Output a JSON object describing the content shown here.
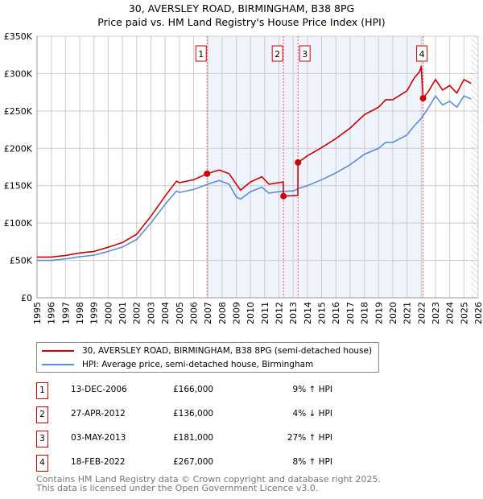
{
  "title_line1": "30, AVERSLEY ROAD, BIRMINGHAM, B38 8PG",
  "title_line2": "Price paid vs. HM Land Registry's House Price Index (HPI)",
  "colors": {
    "property": "#cc0000",
    "hpi": "#5b8fd4",
    "shade": "#eef3fc",
    "grid": "#cccccc"
  },
  "chart_data": {
    "type": "line",
    "title": "Price paid vs. HM Land Registry's House Price Index (HPI)",
    "xlim": [
      1995,
      2026
    ],
    "ylim": [
      0,
      350000
    ],
    "x_ticks": [
      "1995",
      "1996",
      "1997",
      "1998",
      "1999",
      "2000",
      "2001",
      "2002",
      "2003",
      "2004",
      "2005",
      "2006",
      "2007",
      "2008",
      "2009",
      "2010",
      "2011",
      "2012",
      "2013",
      "2014",
      "2015",
      "2016",
      "2017",
      "2018",
      "2019",
      "2020",
      "2021",
      "2022",
      "2023",
      "2024",
      "2025",
      "2026"
    ],
    "y_ticks": [
      {
        "v": 0,
        "label": "£0"
      },
      {
        "v": 50000,
        "label": "£50K"
      },
      {
        "v": 100000,
        "label": "£100K"
      },
      {
        "v": 150000,
        "label": "£150K"
      },
      {
        "v": 200000,
        "label": "£200K"
      },
      {
        "v": 250000,
        "label": "£250K"
      },
      {
        "v": 300000,
        "label": "£300K"
      },
      {
        "v": 350000,
        "label": "£350K"
      }
    ],
    "shaded_range": [
      2006.95,
      2022.13
    ],
    "hatched_from": 2025.5,
    "series": [
      {
        "name": "30, AVERSLEY ROAD, BIRMINGHAM, B38 8PG (semi-detached house)",
        "color": "#cc0000",
        "x": [
          1995,
          1996,
          1997,
          1998,
          1999,
          2000,
          2001,
          2002,
          2003,
          2004,
          2004.8,
          2005,
          2006,
          2006.95,
          2007.8,
          2008.5,
          2009.3,
          2010,
          2010.8,
          2011.3,
          2012.3,
          2012.32,
          2013.33,
          2013.34,
          2014,
          2015,
          2016,
          2017,
          2018,
          2019,
          2019.5,
          2020,
          2021,
          2021.5,
          2021.9,
          2022.0,
          2022.13,
          2022.5,
          2023,
          2023.5,
          2024,
          2024.5,
          2025,
          2025.5
        ],
        "y": [
          54500,
          54500,
          56700,
          60000,
          62000,
          67600,
          74000,
          85000,
          109000,
          136000,
          156000,
          154000,
          158000,
          166000,
          171000,
          166000,
          144000,
          155000,
          162000,
          152000,
          155000,
          136000,
          137000,
          181000,
          190000,
          201000,
          213000,
          227000,
          245000,
          255000,
          265000,
          265000,
          277000,
          294000,
          303000,
          310000,
          267000,
          276000,
          292000,
          278000,
          284000,
          274000,
          292000,
          287000
        ]
      },
      {
        "name": "HPI: Average price, semi-detached house, Birmingham",
        "color": "#5b8fd4",
        "x": [
          1995,
          1996,
          1997,
          1998,
          1999,
          2000,
          2001,
          2002,
          2003,
          2004,
          2004.8,
          2005,
          2006,
          2007,
          2007.8,
          2008.5,
          2009,
          2009.3,
          2010,
          2010.8,
          2011.3,
          2012,
          2013,
          2013.5,
          2014,
          2015,
          2016,
          2017,
          2018,
          2019,
          2019.5,
          2020,
          2021,
          2021.5,
          2022,
          2022.5,
          2023,
          2023.5,
          2024,
          2024.5,
          2025,
          2025.5
        ],
        "y": [
          50000,
          50000,
          52000,
          55000,
          57000,
          62000,
          68000,
          78000,
          100000,
          125000,
          143000,
          141000,
          145000,
          152000,
          157000,
          152000,
          135000,
          132000,
          142000,
          148000,
          140000,
          142000,
          143000,
          147000,
          150000,
          158000,
          167000,
          178000,
          192000,
          200000,
          208000,
          208000,
          218000,
          230000,
          240000,
          254000,
          270000,
          258000,
          263000,
          255000,
          270000,
          266000
        ]
      }
    ],
    "sales": [
      {
        "n": "1",
        "x": 2006.95,
        "y": 166000
      },
      {
        "n": "2",
        "x": 2012.32,
        "y": 136000
      },
      {
        "n": "3",
        "x": 2013.34,
        "y": 181000
      },
      {
        "n": "4",
        "x": 2022.13,
        "y": 267000
      }
    ]
  },
  "legend": {
    "property": "30, AVERSLEY ROAD, BIRMINGHAM, B38 8PG (semi-detached house)",
    "hpi": "HPI: Average price, semi-detached house, Birmingham"
  },
  "transactions": [
    {
      "n": "1",
      "date": "13-DEC-2006",
      "price": "£166,000",
      "hpi": "9% ↑ HPI"
    },
    {
      "n": "2",
      "date": "27-APR-2012",
      "price": "£136,000",
      "hpi": "4% ↓ HPI"
    },
    {
      "n": "3",
      "date": "03-MAY-2013",
      "price": "£181,000",
      "hpi": "27% ↑ HPI"
    },
    {
      "n": "4",
      "date": "18-FEB-2022",
      "price": "£267,000",
      "hpi": "8% ↑ HPI"
    }
  ],
  "footer": {
    "line1": "Contains HM Land Registry data © Crown copyright and database right 2025.",
    "line2": "This data is licensed under the Open Government Licence v3.0."
  }
}
